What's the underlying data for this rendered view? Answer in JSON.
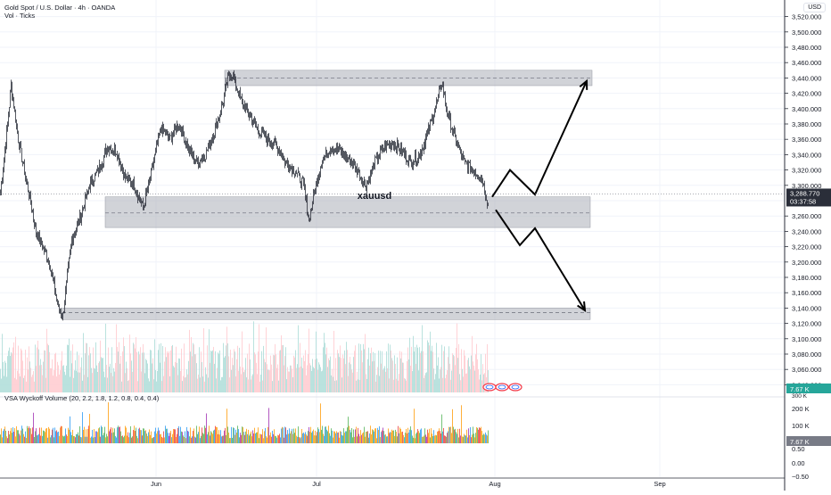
{
  "header": {
    "symbol_line": "Gold Spot / U.S. Dollar · 4h · OANDA",
    "volume_line": "Vol · Ticks",
    "currency_button": "USD"
  },
  "annotation": {
    "text": "xauusd"
  },
  "indicator": {
    "name": "VSA Wyckoff Volume (20, 2.2, 1.8, 1.2, 0.8, 0.4, 0.4)"
  },
  "price_axis": {
    "labels": [
      "3,520.000",
      "3,500.000",
      "3,480.000",
      "3,460.000",
      "3,440.000",
      "3,420.000",
      "3,400.000",
      "3,380.000",
      "3,360.000",
      "3,340.000",
      "3,320.000",
      "3,300.000",
      "3,260.000",
      "3,240.000",
      "3,220.000",
      "3,200.000",
      "3,180.000",
      "3,160.000",
      "3,140.000",
      "3,120.000",
      "3,100.000",
      "3,080.000",
      "3,060.000",
      "3,040.000"
    ],
    "current_price": "3,288.770",
    "countdown": "03:37:58",
    "volume_tag": "7.67 K",
    "partial_tick": "300 K"
  },
  "indicator_axis": {
    "labels": [
      "200 K",
      "100 K",
      "0.50",
      "0.00",
      "−0.50"
    ],
    "volume_tag": "7.67 K"
  },
  "time_axis": {
    "labels": [
      "Jun",
      "Jul",
      "Aug",
      "Sep"
    ]
  },
  "colors": {
    "candle": "#2a2e39",
    "zone": "#b2b5be",
    "vol_up": "#b2dfdb",
    "vol_down": "#ffcdd2",
    "last_price_bg": "#2a2e39",
    "vol_tag_bg": "#26a69a",
    "wyckoff": [
      "#ffa726",
      "#66bb6a",
      "#42a5f5",
      "#ab47bc",
      "#ef5350"
    ]
  },
  "chart_data": {
    "type": "candlestick",
    "symbol": "XAUUSD",
    "timeframe": "4h",
    "ylim": [
      3030,
      3530
    ],
    "price_ticks": [
      3040,
      3060,
      3080,
      3100,
      3120,
      3140,
      3160,
      3180,
      3200,
      3220,
      3240,
      3260,
      3280,
      3300,
      3320,
      3340,
      3360,
      3380,
      3400,
      3420,
      3440,
      3460,
      3480,
      3500,
      3520
    ],
    "last_price": 3288.77,
    "trace": [
      {
        "bar": 0,
        "price": 3290
      },
      {
        "bar": 8,
        "price": 3380
      },
      {
        "bar": 12,
        "price": 3430
      },
      {
        "bar": 20,
        "price": 3360
      },
      {
        "bar": 30,
        "price": 3300
      },
      {
        "bar": 40,
        "price": 3240
      },
      {
        "bar": 55,
        "price": 3200
      },
      {
        "bar": 65,
        "price": 3140
      },
      {
        "bar": 70,
        "price": 3130
      },
      {
        "bar": 80,
        "price": 3230
      },
      {
        "bar": 90,
        "price": 3260
      },
      {
        "bar": 100,
        "price": 3300
      },
      {
        "bar": 110,
        "price": 3320
      },
      {
        "bar": 120,
        "price": 3350
      },
      {
        "bar": 130,
        "price": 3345
      },
      {
        "bar": 140,
        "price": 3310
      },
      {
        "bar": 150,
        "price": 3300
      },
      {
        "bar": 160,
        "price": 3270
      },
      {
        "bar": 170,
        "price": 3320
      },
      {
        "bar": 180,
        "price": 3375
      },
      {
        "bar": 190,
        "price": 3360
      },
      {
        "bar": 200,
        "price": 3380
      },
      {
        "bar": 210,
        "price": 3350
      },
      {
        "bar": 220,
        "price": 3330
      },
      {
        "bar": 230,
        "price": 3340
      },
      {
        "bar": 240,
        "price": 3370
      },
      {
        "bar": 250,
        "price": 3410
      },
      {
        "bar": 255,
        "price": 3440
      },
      {
        "bar": 260,
        "price": 3445
      },
      {
        "bar": 270,
        "price": 3410
      },
      {
        "bar": 280,
        "price": 3390
      },
      {
        "bar": 290,
        "price": 3370
      },
      {
        "bar": 300,
        "price": 3360
      },
      {
        "bar": 310,
        "price": 3350
      },
      {
        "bar": 320,
        "price": 3330
      },
      {
        "bar": 330,
        "price": 3320
      },
      {
        "bar": 340,
        "price": 3300
      },
      {
        "bar": 346,
        "price": 3255
      },
      {
        "bar": 352,
        "price": 3290
      },
      {
        "bar": 360,
        "price": 3330
      },
      {
        "bar": 370,
        "price": 3350
      },
      {
        "bar": 380,
        "price": 3345
      },
      {
        "bar": 390,
        "price": 3335
      },
      {
        "bar": 400,
        "price": 3320
      },
      {
        "bar": 410,
        "price": 3300
      },
      {
        "bar": 420,
        "price": 3330
      },
      {
        "bar": 430,
        "price": 3350
      },
      {
        "bar": 440,
        "price": 3355
      },
      {
        "bar": 450,
        "price": 3345
      },
      {
        "bar": 460,
        "price": 3330
      },
      {
        "bar": 470,
        "price": 3340
      },
      {
        "bar": 480,
        "price": 3370
      },
      {
        "bar": 490,
        "price": 3410
      },
      {
        "bar": 495,
        "price": 3435
      },
      {
        "bar": 500,
        "price": 3400
      },
      {
        "bar": 510,
        "price": 3360
      },
      {
        "bar": 520,
        "price": 3330
      },
      {
        "bar": 530,
        "price": 3320
      },
      {
        "bar": 540,
        "price": 3310
      },
      {
        "bar": 547,
        "price": 3275
      }
    ],
    "zones": [
      {
        "low": 3430,
        "high": 3450,
        "dashed": 3440
      },
      {
        "low": 3245,
        "high": 3285,
        "dashed": 3264
      },
      {
        "low": 3125,
        "high": 3140,
        "dashed": 3134
      }
    ],
    "projections": [
      {
        "points": [
          {
            "bar": 552,
            "price": 3285
          },
          {
            "bar": 572,
            "price": 3320
          },
          {
            "bar": 600,
            "price": 3288
          },
          {
            "bar": 658,
            "price": 3436
          }
        ]
      },
      {
        "points": [
          {
            "bar": 556,
            "price": 3268
          },
          {
            "bar": 583,
            "price": 3222
          },
          {
            "bar": 600,
            "price": 3244
          },
          {
            "bar": 656,
            "price": 3137
          }
        ]
      }
    ],
    "volume": {
      "ylim": [
        0,
        300
      ],
      "unit": "K",
      "last": 7.67
    },
    "indicator_ticks": [
      200,
      100,
      0.5,
      0,
      -0.5
    ],
    "time_ticks": [
      {
        "label": "Jun",
        "bar": 175
      },
      {
        "label": "Jul",
        "bar": 355
      },
      {
        "label": "Aug",
        "bar": 555
      },
      {
        "label": "Sep",
        "bar": 740
      }
    ]
  }
}
